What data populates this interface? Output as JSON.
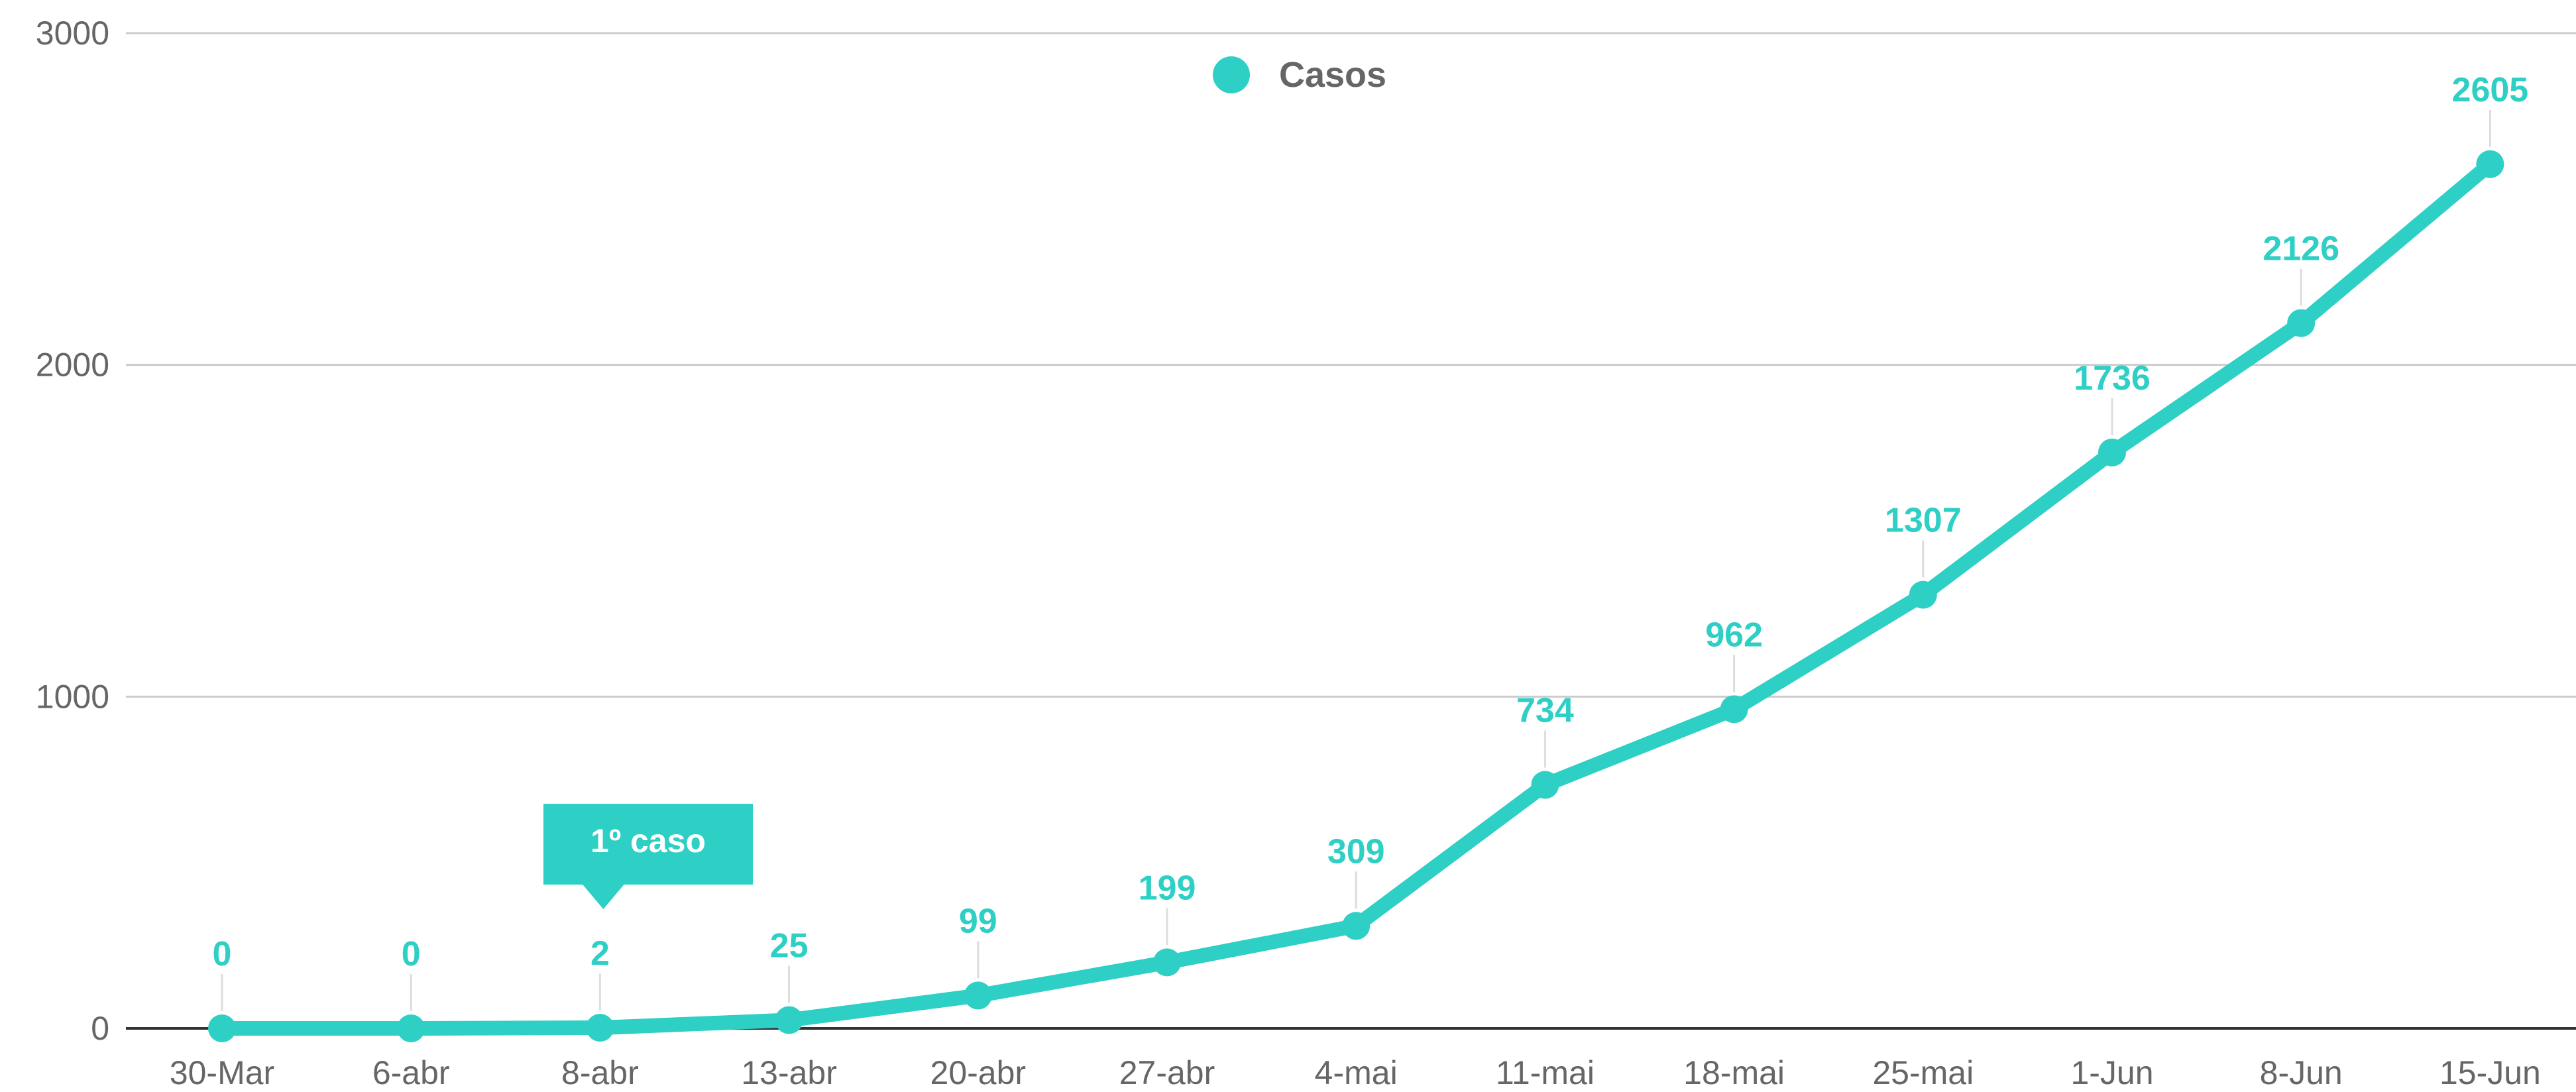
{
  "chart_data": {
    "type": "line",
    "categories": [
      "30-Mar",
      "6-abr",
      "8-abr",
      "13-abr",
      "20-abr",
      "27-abr",
      "4-mai",
      "11-mai",
      "18-mai",
      "25-mai",
      "1-Jun",
      "8-Jun",
      "15-Jun"
    ],
    "series": [
      {
        "name": "Casos",
        "values": [
          0,
          0,
          2,
          25,
          99,
          199,
          309,
          734,
          962,
          1307,
          1736,
          2126,
          2605
        ]
      }
    ],
    "y_ticks": [
      0,
      1000,
      2000,
      3000
    ],
    "ylim": [
      0,
      3000
    ],
    "grid": true,
    "legend_position": "top-center",
    "series_color": "#2ecfc4",
    "annotations": [
      {
        "label": "1º caso",
        "category": "8-abr"
      }
    ]
  }
}
